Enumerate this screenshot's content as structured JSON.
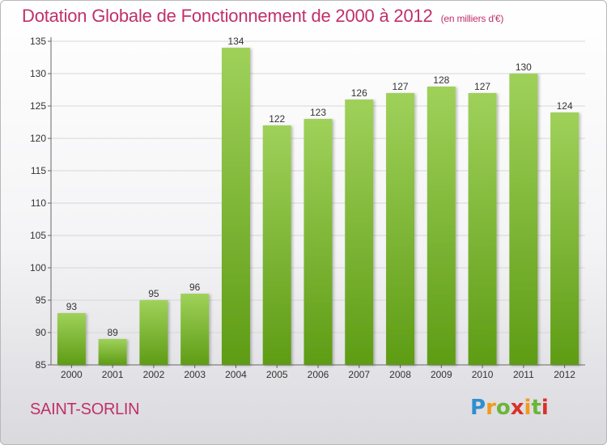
{
  "title": "Dotation Globale de Fonctionnement de 2000 à 2012",
  "title_unit": "(en milliers d'€)",
  "commune": "SAINT-SORLIN",
  "logo": {
    "p": "P",
    "r": "r",
    "o": "o",
    "x": "x",
    "i1": "i",
    "t": "t",
    "i2": "i"
  },
  "colors": {
    "bar_top": "#9fd15a",
    "bar_bottom": "#5e9c15",
    "accent": "#c0306a"
  },
  "chart_data": {
    "type": "bar",
    "categories": [
      "2000",
      "2001",
      "2002",
      "2003",
      "2004",
      "2005",
      "2006",
      "2007",
      "2008",
      "2009",
      "2010",
      "2011",
      "2012"
    ],
    "values": [
      93,
      89,
      95,
      96,
      134,
      122,
      123,
      126,
      127,
      128,
      127,
      130,
      124
    ],
    "ylim": [
      85,
      135
    ],
    "yticks": [
      85,
      90,
      95,
      100,
      105,
      110,
      115,
      120,
      125,
      130,
      135
    ],
    "grid": true
  }
}
